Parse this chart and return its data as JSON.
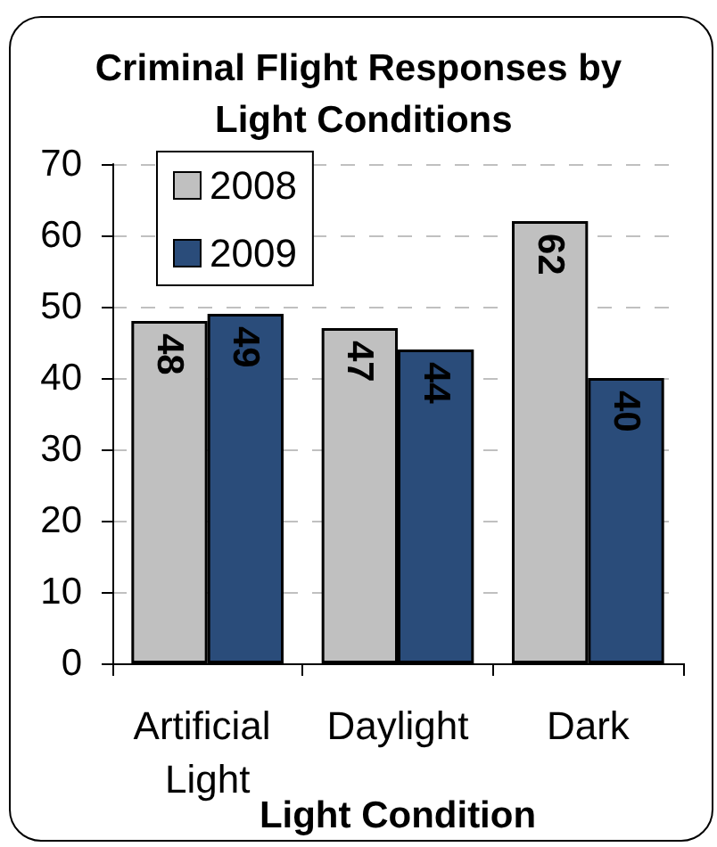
{
  "chart_data": {
    "type": "bar",
    "title": "Criminal Flight Responses by Light Conditions",
    "xlabel": "Light Condition",
    "categories": [
      "Artificial Light",
      "Daylight",
      "Dark"
    ],
    "series": [
      {
        "name": "2008",
        "color": "#c0c0c0",
        "values": [
          48,
          47,
          62
        ]
      },
      {
        "name": "2009",
        "color": "#2a4c7a",
        "values": [
          49,
          44,
          40
        ]
      }
    ],
    "ylim": [
      0,
      70
    ],
    "yticks": [
      0,
      10,
      20,
      30,
      40,
      50,
      60,
      70
    ],
    "grid": "y",
    "legend": "top left",
    "data_labels": true
  }
}
